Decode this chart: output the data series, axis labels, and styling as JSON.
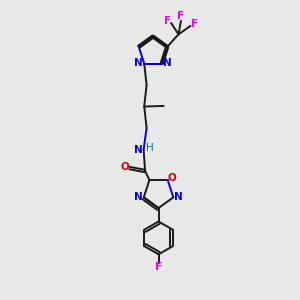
{
  "background_color": "#e8e8e8",
  "bond_color": "#1a1a1a",
  "nitrogen_color": "#0000ee",
  "oxygen_color": "#dd0000",
  "fluorine_color": "#ee00ee",
  "teal_color": "#008080",
  "figure_size": [
    3.0,
    3.0
  ],
  "dpi": 100,
  "xlim": [
    0,
    10
  ],
  "ylim": [
    0,
    10
  ]
}
